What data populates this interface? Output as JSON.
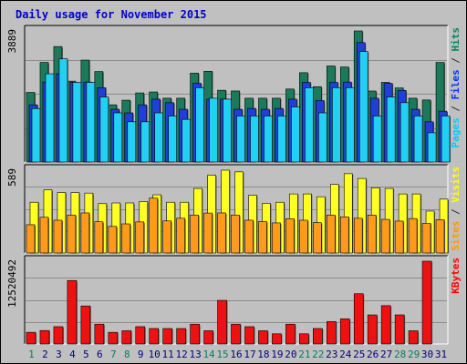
{
  "chart_data": {
    "type": "bar",
    "title": "Daily usage for November 2015",
    "categories": [
      "1",
      "2",
      "3",
      "4",
      "5",
      "6",
      "7",
      "8",
      "9",
      "10",
      "11",
      "12",
      "13",
      "14",
      "15",
      "16",
      "17",
      "18",
      "19",
      "20",
      "21",
      "22",
      "23",
      "24",
      "25",
      "26",
      "27",
      "28",
      "29",
      "30",
      "31"
    ],
    "weekend_categories": [
      "1",
      "7",
      "8",
      "14",
      "15",
      "21",
      "22",
      "28",
      "29"
    ],
    "panels": [
      {
        "name": "hits-files-pages",
        "max_label": "3889",
        "ymax": 3889,
        "legend": [
          {
            "text": "Pages",
            "color": "#00ccff"
          },
          {
            "text": " / ",
            "color": "#333333"
          },
          {
            "text": "Files",
            "color": "#0033ff"
          },
          {
            "text": " / ",
            "color": "#333333"
          },
          {
            "text": "Hits",
            "color": "#008860"
          }
        ],
        "series": [
          {
            "name": "Hits",
            "color": "#1a7a5a",
            "values": [
              2065,
              2955,
              3426,
              2400,
              3024,
              2685,
              1697,
              1834,
              2050,
              2078,
              1893,
              1893,
              2637,
              2693,
              2129,
              2108,
              1893,
              1893,
              1893,
              2165,
              2650,
              2235,
              2850,
              2818,
              3889,
              2107,
              2363,
              2198,
              1893,
              1840,
              2955
            ]
          },
          {
            "name": "Files",
            "color": "#1f3fd6",
            "values": [
              1697,
              2373,
              2618,
              2363,
              2373,
              2205,
              1565,
              1458,
              1697,
              1865,
              1760,
              1565,
              2333,
              1865,
              1865,
              1565,
              1590,
              1565,
              1590,
              1865,
              2363,
              1825,
              2363,
              2373,
              3544,
              1893,
              2333,
              2125,
              1565,
              1193,
              1509
            ]
          },
          {
            "name": "Pages",
            "color": "#22d0f5",
            "values": [
              1585,
              2618,
              3060,
              2363,
              2363,
              1929,
              1458,
              1193,
              1193,
              1458,
              1365,
              1265,
              2205,
              1893,
              1865,
              1365,
              1365,
              1365,
              1365,
              1634,
              2205,
              1458,
              2205,
              2205,
              3280,
              1365,
              1929,
              1760,
              1365,
              866,
              1365
            ]
          }
        ]
      },
      {
        "name": "visits-sites",
        "max_label": "589",
        "ymax": 589,
        "legend": [
          {
            "text": "Sites",
            "color": "#ff9900"
          },
          {
            "text": " / ",
            "color": "#333333"
          },
          {
            "text": "Visits",
            "color": "#ffff00"
          }
        ],
        "series": [
          {
            "name": "Visits",
            "color": "#ffff22",
            "values": [
              361,
              449,
              430,
              430,
              426,
              351,
              356,
              356,
              366,
              414,
              361,
              361,
              459,
              553,
              589,
              577,
              411,
              353,
              361,
              420,
              420,
              400,
              488,
              564,
              530,
              464,
              459,
              420,
              420,
              298,
              383
            ]
          },
          {
            "name": "Sites",
            "color": "#ff9a1a",
            "values": [
              201,
              254,
              233,
              270,
              285,
              222,
              189,
              207,
              221,
              390,
              228,
              247,
              270,
              284,
              285,
              270,
              233,
              224,
              214,
              244,
              233,
              216,
              270,
              257,
              247,
              270,
              239,
              227,
              245,
              211,
              237
            ]
          }
        ]
      },
      {
        "name": "kbytes",
        "max_label": "12520492",
        "ymax": 12520492,
        "legend": [
          {
            "text": "KBytes",
            "color": "#ff0000"
          }
        ],
        "series": [
          {
            "name": "KBytes",
            "color": "#ee1111",
            "values": [
              1765000,
              2037000,
              2620000,
              9600000,
              5750000,
              3000000,
              1765000,
              2000000,
              2620000,
              2340000,
              2340000,
              2340000,
              3000000,
              2000000,
              6600000,
              3000000,
              2620000,
              2000000,
              1540000,
              3000000,
              1540000,
              2340000,
              3400000,
              3800000,
              7600000,
              4400000,
              5800000,
              4400000,
              2000000,
              12520492,
              0
            ]
          }
        ]
      }
    ]
  }
}
